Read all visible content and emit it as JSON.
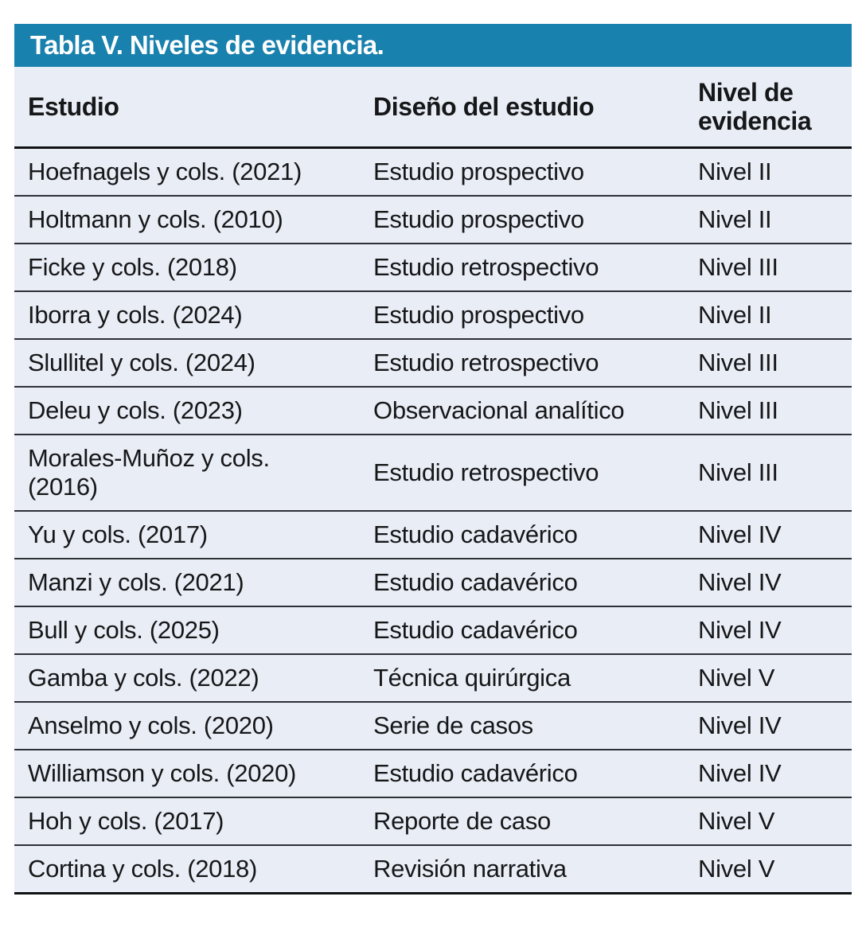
{
  "table": {
    "title": "Tabla V. Niveles de evidencia.",
    "columns": [
      "Estudio",
      "Diseño del estudio",
      "Nivel de evidencia"
    ],
    "rows": [
      [
        "Hoefnagels y cols. (2021)",
        "Estudio prospectivo",
        "Nivel II"
      ],
      [
        "Holtmann y cols. (2010)",
        "Estudio prospectivo",
        "Nivel II"
      ],
      [
        "Ficke y cols. (2018)",
        "Estudio retrospectivo",
        "Nivel III"
      ],
      [
        "Iborra y cols. (2024)",
        "Estudio prospectivo",
        "Nivel II"
      ],
      [
        "Slullitel y cols. (2024)",
        "Estudio retrospectivo",
        "Nivel III"
      ],
      [
        "Deleu y cols. (2023)",
        "Observacional analítico",
        "Nivel III"
      ],
      [
        "Morales-Muñoz y cols. (2016)",
        "Estudio retrospectivo",
        "Nivel III"
      ],
      [
        "Yu y cols. (2017)",
        "Estudio cadavérico",
        "Nivel IV"
      ],
      [
        "Manzi y cols. (2021)",
        "Estudio cadavérico",
        "Nivel IV"
      ],
      [
        "Bull y cols. (2025)",
        "Estudio cadavérico",
        "Nivel IV"
      ],
      [
        "Gamba y cols. (2022)",
        "Técnica quirúrgica",
        "Nivel V"
      ],
      [
        "Anselmo y cols. (2020)",
        "Serie de casos",
        "Nivel IV"
      ],
      [
        "Williamson y cols. (2020)",
        "Estudio cadavérico",
        "Nivel IV"
      ],
      [
        "Hoh y cols. (2017)",
        "Reporte de caso",
        "Nivel V"
      ],
      [
        "Cortina y cols. (2018)",
        "Revisión narrativa",
        "Nivel V"
      ]
    ],
    "colors": {
      "header_bg": "#1981ad",
      "header_text": "#ffffff",
      "body_bg": "#e9edf5",
      "text": "#161719",
      "line": "#2d3036",
      "strong_line": "#101113"
    }
  }
}
